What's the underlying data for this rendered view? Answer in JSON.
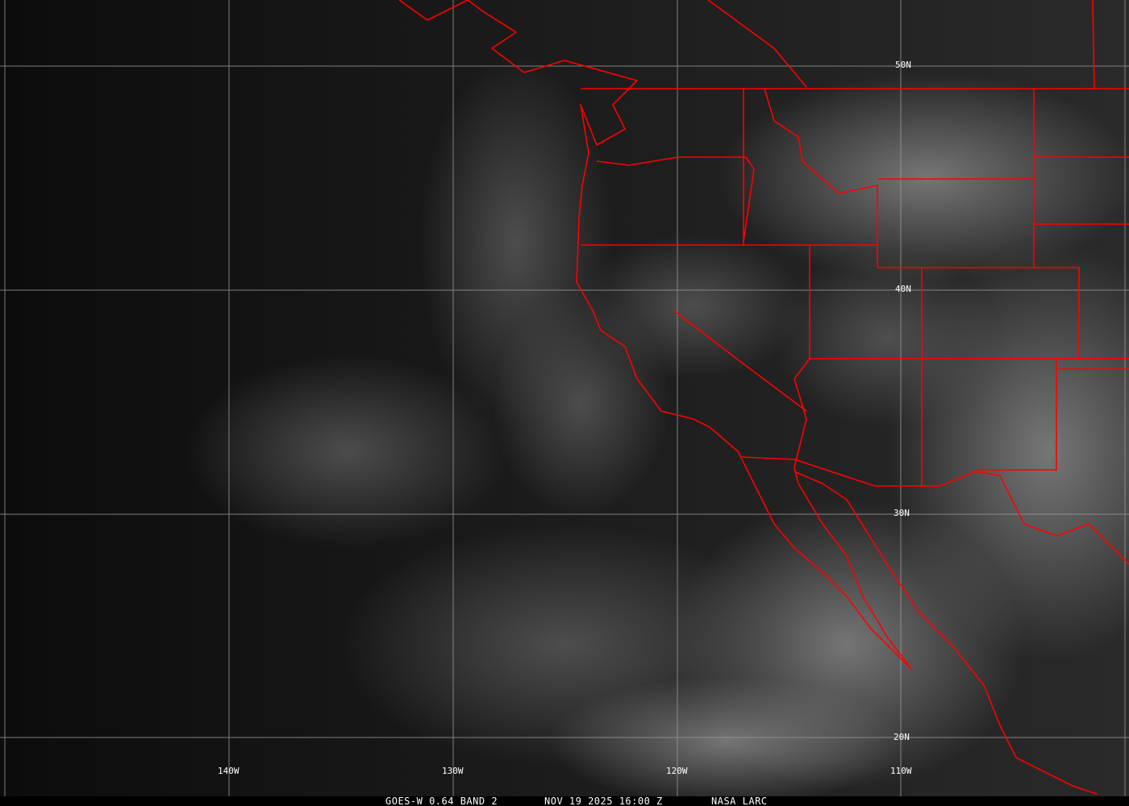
{
  "image": {
    "type": "satellite-visible-image",
    "grid_labels": {
      "latitude": [
        "50N",
        "40N",
        "30N",
        "20N"
      ],
      "longitude": [
        "140W",
        "130W",
        "120W",
        "110W"
      ]
    },
    "caption": {
      "product": "GOES-W 0.64 BAND 2",
      "datetime": "NOV 19 2025 16:00 Z",
      "source": "NASA LARC"
    },
    "colors": {
      "boundaries": "#ff0000",
      "grid": "#9a9a9a",
      "background": "#111111"
    }
  }
}
